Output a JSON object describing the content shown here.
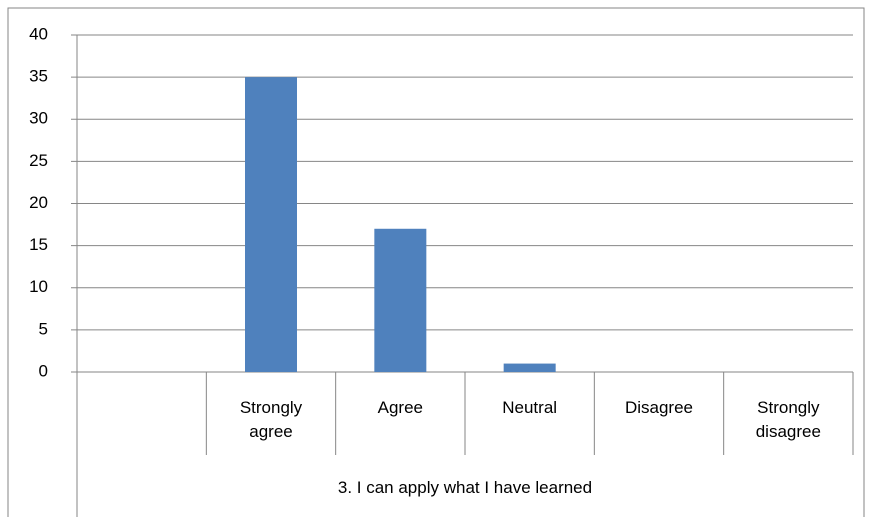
{
  "chart_data": {
    "type": "bar",
    "xlabel": "3. I can apply what I have learned",
    "categories": [
      null,
      "Strongly agree",
      "Agree",
      "Neutral",
      "Disagree",
      "Strongly disagree"
    ],
    "values": [
      null,
      35,
      17,
      1,
      0,
      0
    ],
    "color": "#4f81bd",
    "ylim": [
      0,
      40
    ],
    "yticks": [
      0,
      5,
      10,
      15,
      20,
      25,
      30,
      35,
      40
    ],
    "grid": true
  }
}
